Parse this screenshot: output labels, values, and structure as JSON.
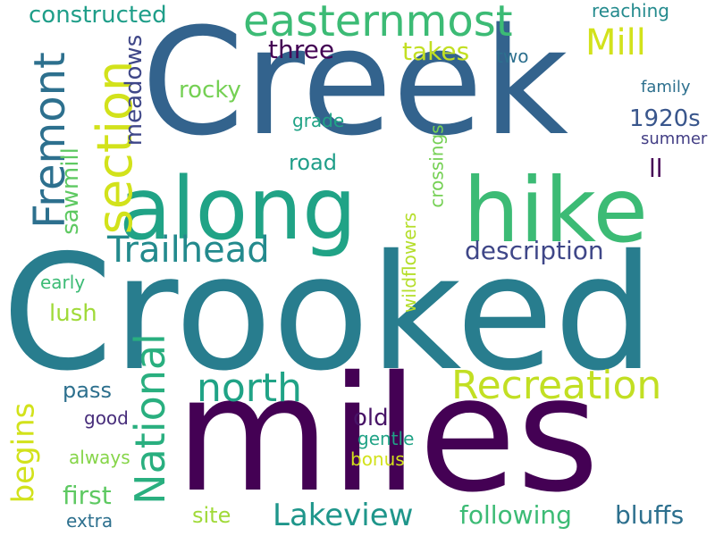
{
  "words": [
    {
      "text": "Crooked",
      "color": "#287d8e"
    },
    {
      "text": "miles",
      "color": "#440154"
    },
    {
      "text": "Creek",
      "color": "#33638d"
    },
    {
      "text": "along",
      "color": "#20a386"
    },
    {
      "text": "hike",
      "color": "#3cbb75"
    },
    {
      "text": "easternmost",
      "color": "#3cbb75"
    },
    {
      "text": "section",
      "color": "#d2e21b"
    },
    {
      "text": "Fremont",
      "color": "#2d708e"
    },
    {
      "text": "Mill",
      "color": "#d2e21b"
    },
    {
      "text": "Trailhead",
      "color": "#238a8d"
    },
    {
      "text": "National",
      "color": "#29af7f"
    },
    {
      "text": "Recreation",
      "color": "#c2df23"
    },
    {
      "text": "north",
      "color": "#20a386"
    },
    {
      "text": "Lakeview",
      "color": "#1f968b"
    },
    {
      "text": "description",
      "color": "#3f4788"
    },
    {
      "text": "begins",
      "color": "#d2e21b"
    },
    {
      "text": "constructed",
      "color": "#1f9e89"
    },
    {
      "text": "three",
      "color": "#440154"
    },
    {
      "text": "takes",
      "color": "#c2df23"
    },
    {
      "text": "rocky",
      "color": "#75d054"
    },
    {
      "text": "meadows",
      "color": "#3f4788"
    },
    {
      "text": "1920s",
      "color": "#39568c"
    },
    {
      "text": "road",
      "color": "#1f9e89"
    },
    {
      "text": "sawmill",
      "color": "#5ec962"
    },
    {
      "text": "crossings",
      "color": "#75d054"
    },
    {
      "text": "wildflowers",
      "color": "#b5de2b"
    },
    {
      "text": "following",
      "color": "#3cbb75"
    },
    {
      "text": "bluffs",
      "color": "#2d708e"
    },
    {
      "text": "first",
      "color": "#5ec962"
    },
    {
      "text": "pass",
      "color": "#2d708e"
    },
    {
      "text": "old",
      "color": "#481467"
    },
    {
      "text": "gentle",
      "color": "#20a386"
    },
    {
      "text": "site",
      "color": "#a0da39"
    },
    {
      "text": "lush",
      "color": "#a0da39"
    },
    {
      "text": "early",
      "color": "#3cbb75"
    },
    {
      "text": "good",
      "color": "#472d7b"
    },
    {
      "text": "always",
      "color": "#86d549"
    },
    {
      "text": "bonus",
      "color": "#d2e21b"
    },
    {
      "text": "extra",
      "color": "#2d708e"
    },
    {
      "text": "grade",
      "color": "#20a386"
    },
    {
      "text": "family",
      "color": "#2d708e"
    },
    {
      "text": "summer",
      "color": "#433e85"
    },
    {
      "text": "ll",
      "color": "#440154"
    },
    {
      "text": "two",
      "color": "#2d708e"
    },
    {
      "text": "reaching",
      "color": "#238a8d"
    }
  ]
}
